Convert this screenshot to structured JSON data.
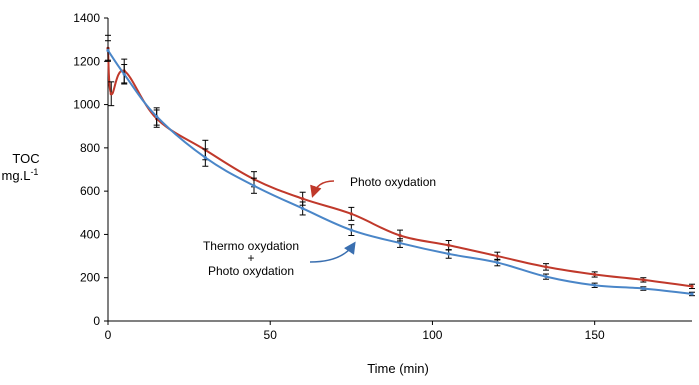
{
  "chart_data": {
    "type": "line",
    "title": "",
    "xlabel": "Time (min)",
    "ylabel_line1": "TOC",
    "ylabel_line2": "mg.L",
    "ylabel_superscript": "-1",
    "xlim": [
      0,
      180
    ],
    "ylim": [
      0,
      1400
    ],
    "x_ticks": [
      0,
      50,
      100,
      150
    ],
    "y_ticks": [
      0,
      200,
      400,
      600,
      800,
      1000,
      1200,
      1400
    ],
    "grid": false,
    "legend": "none",
    "series": [
      {
        "name": "Photo oxydation",
        "color": "#c0392b",
        "x": [
          0,
          1,
          5,
          15,
          30,
          45,
          60,
          75,
          90,
          105,
          120,
          135,
          150,
          165,
          180
        ],
        "y": [
          1260,
          1050,
          1155,
          935,
          790,
          655,
          565,
          495,
          395,
          350,
          300,
          250,
          215,
          190,
          160
        ],
        "err": [
          60,
          55,
          55,
          40,
          45,
          35,
          30,
          30,
          25,
          22,
          18,
          15,
          12,
          10,
          10
        ]
      },
      {
        "name": "Thermo oxydation + Photo oxydation",
        "color": "#4a86c8",
        "x": [
          0,
          5,
          15,
          30,
          45,
          60,
          75,
          90,
          105,
          120,
          135,
          150,
          165,
          180
        ],
        "y": [
          1250,
          1140,
          945,
          755,
          625,
          520,
          420,
          360,
          310,
          270,
          205,
          165,
          150,
          125
        ],
        "err": [
          45,
          45,
          40,
          40,
          35,
          30,
          25,
          20,
          20,
          15,
          12,
          10,
          8,
          8
        ]
      }
    ],
    "annotations": [
      {
        "text": "Photo oxydation"
      },
      {
        "text": "Thermo oxydation"
      },
      {
        "text": "+"
      },
      {
        "text": "Photo oxydation"
      }
    ]
  }
}
